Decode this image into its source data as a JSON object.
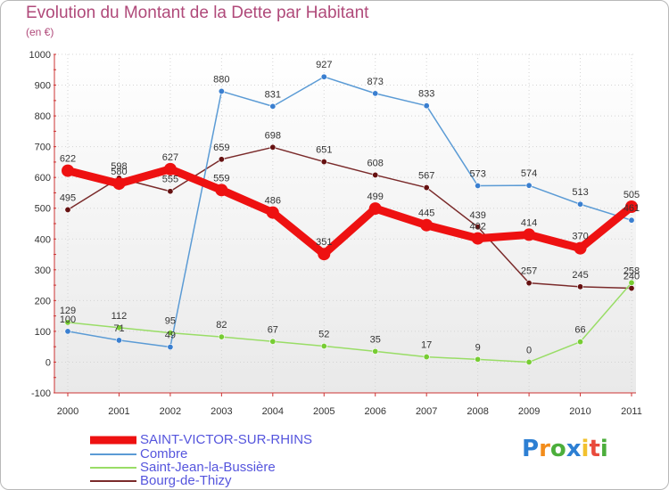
{
  "chart_data": {
    "type": "line",
    "title": "Evolution du Montant de la Dette par Habitant",
    "subtitle": "(en €)",
    "x": [
      "2000",
      "2001",
      "2002",
      "2003",
      "2004",
      "2005",
      "2006",
      "2007",
      "2008",
      "2009",
      "2010",
      "2011"
    ],
    "ylim": [
      -100,
      1000
    ],
    "yticks": [
      "-100",
      "0",
      "100",
      "200",
      "300",
      "400",
      "500",
      "600",
      "700",
      "800",
      "900",
      "1000"
    ],
    "grid": true,
    "legend_position": "bottom-left",
    "series": [
      {
        "name": "SAINT-VICTOR-SUR-RHINS",
        "color": "#ee1111",
        "values": [
          622,
          580,
          627,
          559,
          486,
          351,
          499,
          445,
          402,
          414,
          370,
          505
        ],
        "labels": [
          "622",
          "580",
          "627",
          "559",
          "486",
          "351",
          "499",
          "445",
          "402",
          "414",
          "370",
          "505"
        ]
      },
      {
        "name": "Combre",
        "color": "#5b9bd5",
        "point_color": "#3a7fd0",
        "values": [
          100,
          71,
          49,
          880,
          831,
          927,
          873,
          833,
          573,
          574,
          513,
          461
        ],
        "labels": [
          "100",
          "71",
          "49",
          "880",
          "831",
          "927",
          "873",
          "833",
          "573",
          "574",
          "513",
          "461"
        ]
      },
      {
        "name": "Saint-Jean-la-Bussière",
        "color": "#99dd66",
        "point_color": "#77cc33",
        "values": [
          129,
          112,
          95,
          82,
          67,
          52,
          35,
          17,
          9,
          0,
          66,
          258
        ],
        "labels": [
          "129",
          "112",
          "95",
          "82",
          "67",
          "52",
          "35",
          "17",
          "9",
          "0",
          "66",
          "258"
        ]
      },
      {
        "name": "Bourg-de-Thizy",
        "color": "#7a2a2a",
        "point_color": "#661111",
        "values": [
          495,
          598,
          555,
          659,
          698,
          651,
          608,
          567,
          439,
          257,
          245,
          240
        ],
        "labels": [
          "495",
          "598",
          "555",
          "659",
          "698",
          "651",
          "608",
          "567",
          "439",
          "257",
          "245",
          "240"
        ]
      }
    ]
  },
  "brand": {
    "letters": [
      "P",
      "r",
      "o",
      "x",
      "i",
      "t",
      "i"
    ],
    "colors": [
      "#2d7fd3",
      "#f28c1b",
      "#4cae3b",
      "#2d7fd3",
      "#f2c12e",
      "#e94b3c",
      "#4cae3b"
    ]
  }
}
